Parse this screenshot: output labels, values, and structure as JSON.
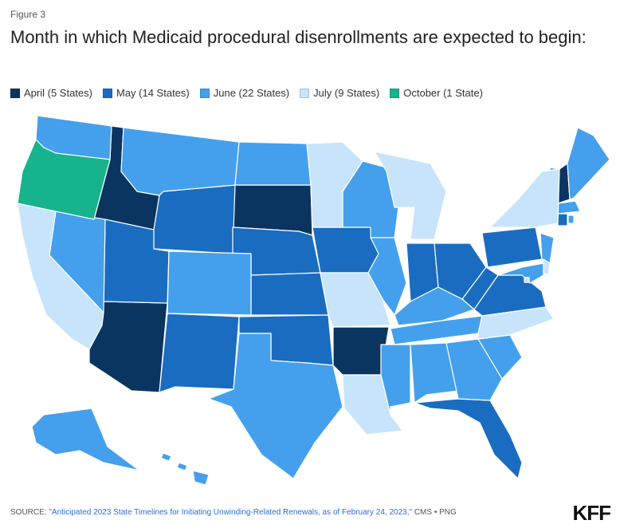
{
  "figure_label": "Figure 3",
  "title": "Month in which Medicaid procedural disenrollments are expected to begin:",
  "legend": [
    {
      "label": "April (5 States)",
      "color": "#0b3561"
    },
    {
      "label": "May (14 States)",
      "color": "#1a6cc0"
    },
    {
      "label": "June (22 States)",
      "color": "#44a0ec"
    },
    {
      "label": "July (9 States)",
      "color": "#c7e4fb"
    },
    {
      "label": "October (1 State)",
      "color": "#16b38c"
    }
  ],
  "footer": {
    "prefix": "SOURCE: ",
    "link_text": "\"Anticipated 2023 State Timelines for Initiating Unwinding-Related Renewals, as of February 24, 2023,\"",
    "suffix": " CMS • PNG"
  },
  "logo_text": "KFF",
  "map_data": {
    "april": [
      "AZ",
      "ID",
      "SD",
      "AR",
      "NH"
    ],
    "may": [
      "WY",
      "UT",
      "NE",
      "KS",
      "OK",
      "NM",
      "IA",
      "IN",
      "OH",
      "WV",
      "VA",
      "PA",
      "FL",
      "CT"
    ],
    "june": [
      "WA",
      "MT",
      "ND",
      "NV",
      "CO",
      "TX",
      "WI",
      "IL",
      "KY",
      "TN",
      "MS",
      "AL",
      "GA",
      "SC",
      "ME",
      "VT",
      "MA",
      "NJ",
      "MD",
      "AK",
      "HI",
      "RI"
    ],
    "july": [
      "CA",
      "MN",
      "MI",
      "MO",
      "LA",
      "NY",
      "NC",
      "DE",
      "DC"
    ],
    "october": [
      "OR"
    ]
  }
}
